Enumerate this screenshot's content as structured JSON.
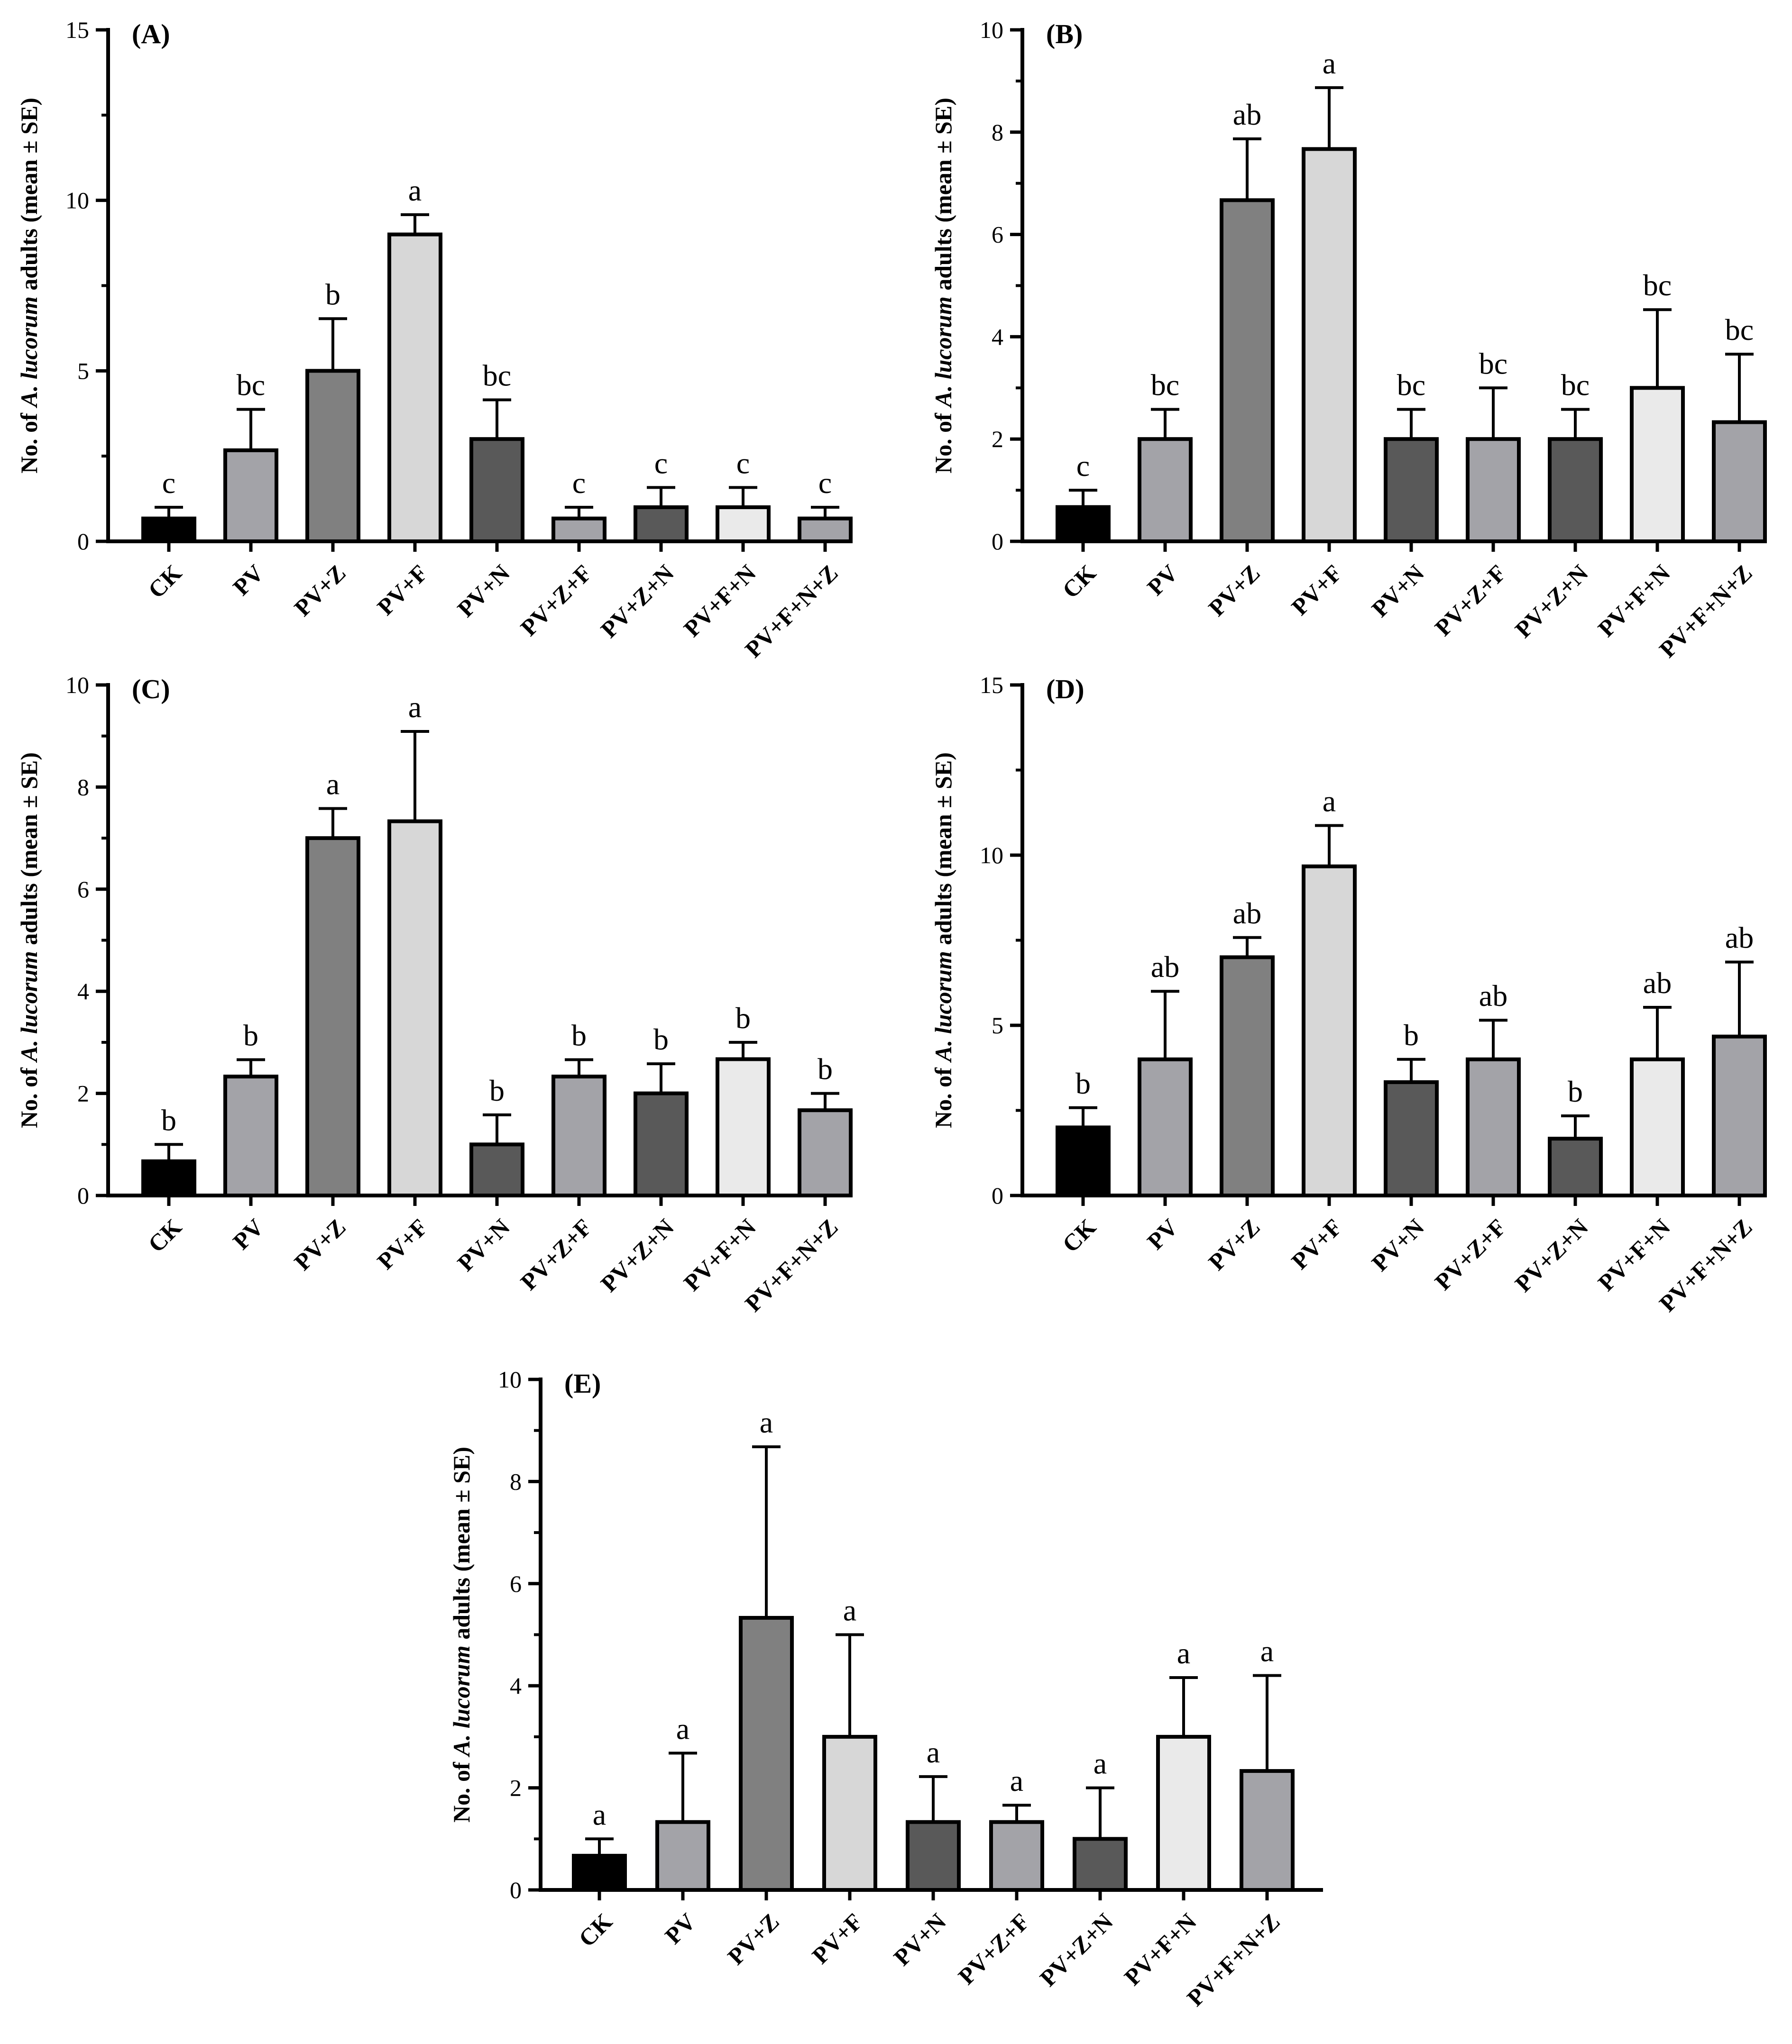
{
  "figure": {
    "y_axis_title_prefix": "No. of ",
    "y_axis_title_species": "A. lucorum",
    "y_axis_title_suffix": " adults (mean ± SE)"
  },
  "colors": {
    "CK": "#000000",
    "PV": "#a3a3a8",
    "PV+Z": "#808080",
    "PV+F": "#d7d7d7",
    "PV+N": "#595959",
    "PV+Z+F": "#a3a3a8",
    "PV+Z+N": "#595959",
    "PV+F+N": "#eaeaea",
    "PV+F+N+Z": "#a3a3a8"
  },
  "chart_data": [
    {
      "type": "bar",
      "panel": "(A)",
      "categories": [
        "CK",
        "PV",
        "PV+Z",
        "PV+F",
        "PV+N",
        "PV+Z+F",
        "PV+Z+N",
        "PV+F+N",
        "PV+F+N+Z"
      ],
      "values": [
        0.67,
        2.67,
        5.0,
        9.0,
        3.0,
        0.67,
        1.0,
        1.0,
        0.67
      ],
      "errors": [
        0.33,
        1.2,
        1.53,
        0.58,
        1.15,
        0.33,
        0.58,
        0.58,
        0.33
      ],
      "significance": [
        "c",
        "bc",
        "b",
        "a",
        "bc",
        "c",
        "c",
        "c",
        "c"
      ],
      "ylim": [
        0,
        15
      ],
      "yticks": [
        "0",
        "5",
        "10",
        "15"
      ],
      "ylabel": "No. of A. lucorum adults (mean ± SE)"
    },
    {
      "type": "bar",
      "panel": "(B)",
      "categories": [
        "CK",
        "PV",
        "PV+Z",
        "PV+F",
        "PV+N",
        "PV+Z+F",
        "PV+Z+N",
        "PV+F+N",
        "PV+F+N+Z"
      ],
      "values": [
        0.67,
        2.0,
        6.67,
        7.67,
        2.0,
        2.0,
        2.0,
        3.0,
        2.33
      ],
      "errors": [
        0.33,
        0.58,
        1.2,
        1.2,
        0.58,
        1.0,
        0.58,
        1.53,
        1.33
      ],
      "significance": [
        "c",
        "bc",
        "ab",
        "a",
        "bc",
        "bc",
        "bc",
        "bc",
        "bc"
      ],
      "ylim": [
        0,
        10
      ],
      "yticks": [
        "0",
        "2",
        "4",
        "6",
        "8",
        "10"
      ],
      "ylabel": "No. of A. lucorum adults (mean ± SE)"
    },
    {
      "type": "bar",
      "panel": "(C)",
      "categories": [
        "CK",
        "PV",
        "PV+Z",
        "PV+F",
        "PV+N",
        "PV+Z+F",
        "PV+Z+N",
        "PV+F+N",
        "PV+F+N+Z"
      ],
      "values": [
        0.67,
        2.33,
        7.0,
        7.33,
        1.0,
        2.33,
        2.0,
        2.67,
        1.67
      ],
      "errors": [
        0.33,
        0.33,
        0.58,
        1.76,
        0.58,
        0.33,
        0.58,
        0.33,
        0.33
      ],
      "significance": [
        "b",
        "b",
        "a",
        "a",
        "b",
        "b",
        "b",
        "b",
        "b"
      ],
      "ylim": [
        0,
        10
      ],
      "yticks": [
        "0",
        "2",
        "4",
        "6",
        "8",
        "10"
      ],
      "ylabel": "No. of A. lucorum adults (mean ± SE)"
    },
    {
      "type": "bar",
      "panel": "(D)",
      "categories": [
        "CK",
        "PV",
        "PV+Z",
        "PV+F",
        "PV+N",
        "PV+Z+F",
        "PV+Z+N",
        "PV+F+N",
        "PV+F+N+Z"
      ],
      "values": [
        2.0,
        4.0,
        7.0,
        9.67,
        3.33,
        4.0,
        1.67,
        4.0,
        4.67
      ],
      "errors": [
        0.58,
        2.0,
        0.58,
        1.2,
        0.67,
        1.15,
        0.67,
        1.53,
        2.19
      ],
      "significance": [
        "b",
        "ab",
        "ab",
        "a",
        "b",
        "ab",
        "b",
        "ab",
        "ab"
      ],
      "ylim": [
        0,
        15
      ],
      "yticks": [
        "0",
        "5",
        "10",
        "15"
      ],
      "ylabel": "No. of A. lucorum adults (mean ± SE)"
    },
    {
      "type": "bar",
      "panel": "(E)",
      "categories": [
        "CK",
        "PV",
        "PV+Z",
        "PV+F",
        "PV+N",
        "PV+Z+F",
        "PV+Z+N",
        "PV+F+N",
        "PV+F+N+Z"
      ],
      "values": [
        0.67,
        1.33,
        5.33,
        3.0,
        1.33,
        1.33,
        1.0,
        3.0,
        2.33
      ],
      "errors": [
        0.33,
        1.35,
        3.35,
        2.0,
        0.89,
        0.33,
        1.0,
        1.16,
        1.87
      ],
      "significance": [
        "a",
        "a",
        "a",
        "a",
        "a",
        "a",
        "a",
        "a",
        "a"
      ],
      "ylim": [
        0,
        10
      ],
      "yticks": [
        "0",
        "2",
        "4",
        "6",
        "8",
        "10"
      ],
      "ylabel": "No. of A. lucorum adults (mean ± SE)"
    }
  ]
}
